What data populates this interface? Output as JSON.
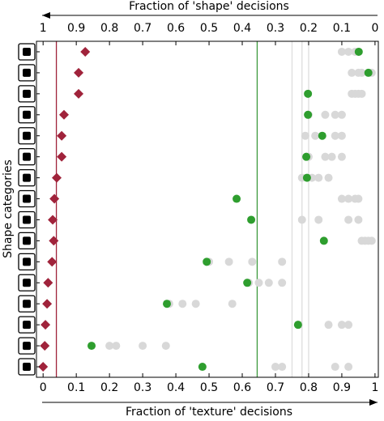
{
  "chart_data": {
    "type": "scatter",
    "xlabel": "Fraction of 'texture' decisions",
    "x2label": "Fraction of 'shape' decisions",
    "ylabel": "Shape categories",
    "categories": [
      null,
      null,
      null,
      null,
      null,
      null,
      null,
      null,
      null,
      null,
      null,
      null,
      null,
      null,
      null,
      null
    ],
    "xlim": [
      -0.02,
      1.01
    ],
    "xticks": [
      0,
      0.1,
      0.2,
      0.3,
      0.4,
      0.5,
      0.6,
      0.7,
      0.8,
      0.9,
      1
    ],
    "x2lim": [
      1.02,
      -0.01
    ],
    "x2ticks": [
      1,
      0.9,
      0.8,
      0.7,
      0.6,
      0.5,
      0.4,
      0.3,
      0.2,
      0.1,
      0
    ],
    "reference_lines": [
      {
        "value": 0.04,
        "color": "#a0233b"
      },
      {
        "value": 0.645,
        "color": "#3c9a3c"
      },
      {
        "value": 0.75,
        "color": "#dddddd"
      },
      {
        "value": 0.78,
        "color": "#dddddd"
      },
      {
        "value": 0.8,
        "color": "#dddddd"
      }
    ],
    "series": [
      {
        "color": "#d8d8d8",
        "marker": "circle",
        "values": [
          0.9,
          0.93,
          0.93,
          0.8,
          0.79,
          0.8,
          0.78,
          0.9,
          0.78,
          0.96,
          0.5,
          0.62,
          0.38,
          0.77,
          0.2,
          0.7
        ]
      },
      {
        "color": "#d8d8d8",
        "marker": "circle",
        "values": [
          0.92,
          0.95,
          0.94,
          0.85,
          0.82,
          0.85,
          0.81,
          0.92,
          0.83,
          0.97,
          0.56,
          0.65,
          0.42,
          0.86,
          0.22,
          0.72
        ]
      },
      {
        "color": "#d8d8d8",
        "marker": "circle",
        "values": [
          0.94,
          0.96,
          0.95,
          0.88,
          0.88,
          0.87,
          0.83,
          0.94,
          0.92,
          0.98,
          0.63,
          0.68,
          0.46,
          0.9,
          0.3,
          0.88
        ]
      },
      {
        "color": "#d8d8d8",
        "marker": "circle",
        "values": [
          0.95,
          0.99,
          0.96,
          0.9,
          0.9,
          0.9,
          0.86,
          0.95,
          0.95,
          0.99,
          0.72,
          0.72,
          0.57,
          0.92,
          0.37,
          0.92
        ]
      },
      {
        "color": "#2e9e2e",
        "marker": "circle",
        "values": [
          0.951,
          0.98,
          0.798,
          0.798,
          0.841,
          0.793,
          0.795,
          0.583,
          0.627,
          0.846,
          0.493,
          0.615,
          0.373,
          0.768,
          0.146,
          0.48
        ]
      },
      {
        "color": "#a0233b",
        "marker": "diamond",
        "values": [
          0.127,
          0.107,
          0.107,
          0.063,
          0.056,
          0.056,
          0.041,
          0.034,
          0.029,
          0.032,
          0.027,
          0.015,
          0.012,
          0.007,
          0.005,
          0
        ]
      }
    ]
  }
}
